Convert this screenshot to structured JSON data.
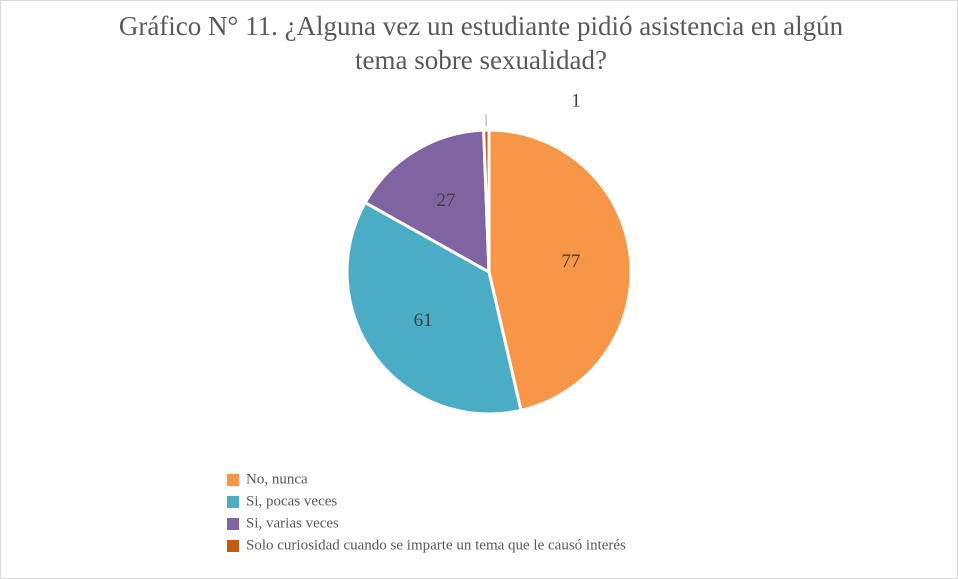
{
  "chart_data": {
    "type": "pie",
    "title": "Gráfico N° 11. ¿Alguna vez un estudiante pidió asistencia en algún tema sobre sexualidad?",
    "categories": [
      "No, nunca",
      "Si, pocas veces",
      "Si, varias veces",
      "Solo curiosidad cuando se imparte un tema que le causó interés"
    ],
    "values": [
      77,
      61,
      27,
      1
    ],
    "colors": [
      "#F79646",
      "#4BACC6",
      "#8064A2",
      "#C55A11"
    ],
    "legend": "bottom"
  }
}
